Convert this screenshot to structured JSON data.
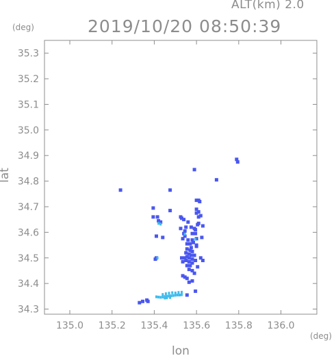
{
  "header": {
    "altitude_label": "ALT(km)  2.0",
    "timestamp": "2019/10/20 08:50:39"
  },
  "chart_data": {
    "type": "scatter",
    "xlabel": "lon",
    "ylabel": "lat",
    "x_unit": "(deg)",
    "y_unit": "(deg)",
    "xlim": [
      134.88,
      136.17
    ],
    "ylim": [
      34.28,
      35.35
    ],
    "x_ticks": [
      "135.0",
      "135.2",
      "135.4",
      "135.6",
      "135.8",
      "136.0"
    ],
    "y_ticks": [
      "34.3",
      "34.4",
      "34.5",
      "34.6",
      "34.7",
      "34.8",
      "34.9",
      "35.0",
      "35.1",
      "35.2",
      "35.3"
    ],
    "grid": false,
    "colors": {
      "blue": "#4a57ee",
      "cyan": "#3fbcec",
      "axis": "#8c8c8c"
    },
    "series": [
      {
        "color": "blue",
        "points": [
          [
            135.79,
            34.885
          ],
          [
            135.795,
            34.875
          ],
          [
            135.59,
            34.845
          ],
          [
            135.695,
            34.805
          ],
          [
            135.24,
            34.765
          ],
          [
            135.475,
            34.765
          ],
          [
            135.395,
            34.695
          ],
          [
            135.61,
            34.725
          ],
          [
            135.6,
            34.725
          ],
          [
            135.615,
            34.72
          ],
          [
            135.475,
            34.685
          ],
          [
            135.6,
            34.69
          ],
          [
            135.61,
            34.68
          ],
          [
            135.6,
            34.675
          ],
          [
            135.62,
            34.665
          ],
          [
            135.525,
            34.66
          ],
          [
            135.395,
            34.66
          ],
          [
            135.415,
            34.66
          ],
          [
            135.61,
            34.66
          ],
          [
            135.53,
            34.655
          ],
          [
            135.54,
            34.65
          ],
          [
            135.43,
            34.64
          ],
          [
            135.42,
            34.645
          ],
          [
            135.56,
            34.64
          ],
          [
            135.61,
            34.635
          ],
          [
            135.605,
            34.63
          ],
          [
            135.575,
            34.62
          ],
          [
            135.55,
            34.62
          ],
          [
            135.525,
            34.615
          ],
          [
            135.63,
            34.625
          ],
          [
            135.59,
            34.615
          ],
          [
            135.595,
            34.61
          ],
          [
            135.545,
            34.605
          ],
          [
            135.54,
            34.595
          ],
          [
            135.58,
            34.595
          ],
          [
            135.545,
            34.585
          ],
          [
            135.41,
            34.585
          ],
          [
            135.535,
            34.575
          ],
          [
            135.56,
            34.57
          ],
          [
            135.6,
            34.575
          ],
          [
            135.58,
            34.57
          ],
          [
            135.585,
            34.56
          ],
          [
            135.555,
            34.555
          ],
          [
            135.57,
            34.555
          ],
          [
            135.6,
            34.545
          ],
          [
            135.625,
            34.58
          ],
          [
            135.575,
            34.54
          ],
          [
            135.555,
            34.535
          ],
          [
            135.57,
            34.53
          ],
          [
            135.58,
            34.525
          ],
          [
            135.55,
            34.52
          ],
          [
            135.565,
            34.515
          ],
          [
            135.575,
            34.51
          ],
          [
            135.59,
            34.51
          ],
          [
            135.555,
            34.505
          ],
          [
            135.545,
            34.5
          ],
          [
            135.565,
            34.5
          ],
          [
            135.58,
            34.495
          ],
          [
            135.595,
            34.49
          ],
          [
            135.55,
            34.49
          ],
          [
            135.565,
            34.485
          ],
          [
            135.58,
            34.48
          ],
          [
            135.57,
            34.47
          ],
          [
            135.555,
            34.47
          ],
          [
            135.62,
            34.5
          ],
          [
            135.63,
            34.49
          ],
          [
            135.535,
            34.485
          ],
          [
            135.53,
            34.5
          ],
          [
            135.605,
            34.465
          ],
          [
            135.565,
            34.455
          ],
          [
            135.58,
            34.45
          ],
          [
            135.59,
            34.44
          ],
          [
            135.545,
            34.425
          ],
          [
            135.555,
            34.42
          ],
          [
            135.58,
            34.41
          ],
          [
            135.565,
            34.405
          ],
          [
            135.535,
            34.43
          ],
          [
            135.41,
            34.5
          ],
          [
            135.405,
            34.495
          ],
          [
            135.6,
            34.55
          ],
          [
            135.33,
            34.325
          ],
          [
            135.345,
            34.33
          ],
          [
            135.365,
            34.335
          ],
          [
            135.37,
            34.33
          ],
          [
            135.595,
            34.37
          ],
          [
            135.555,
            34.355
          ],
          [
            135.595,
            34.595
          ],
          [
            135.44,
            34.58
          ]
        ]
      },
      {
        "color": "cyan",
        "points": [
          [
            135.43,
            34.632
          ],
          [
            135.42,
            34.635
          ],
          [
            135.415,
            34.5
          ],
          [
            135.595,
            34.573
          ],
          [
            135.545,
            34.593
          ],
          [
            135.41,
            34.348
          ],
          [
            135.42,
            34.347
          ],
          [
            135.43,
            34.346
          ],
          [
            135.44,
            34.347
          ],
          [
            135.45,
            34.349
          ],
          [
            135.46,
            34.35
          ],
          [
            135.47,
            34.351
          ],
          [
            135.48,
            34.352
          ],
          [
            135.49,
            34.353
          ],
          [
            135.5,
            34.354
          ],
          [
            135.51,
            34.355
          ],
          [
            135.52,
            34.355
          ],
          [
            135.53,
            34.356
          ],
          [
            135.44,
            34.357
          ],
          [
            135.455,
            34.36
          ],
          [
            135.47,
            34.362
          ],
          [
            135.485,
            34.364
          ],
          [
            135.5,
            34.363
          ],
          [
            135.515,
            34.365
          ],
          [
            135.53,
            34.366
          ],
          [
            135.45,
            34.343
          ],
          [
            135.46,
            34.344
          ],
          [
            135.475,
            34.345
          ]
        ]
      }
    ]
  }
}
